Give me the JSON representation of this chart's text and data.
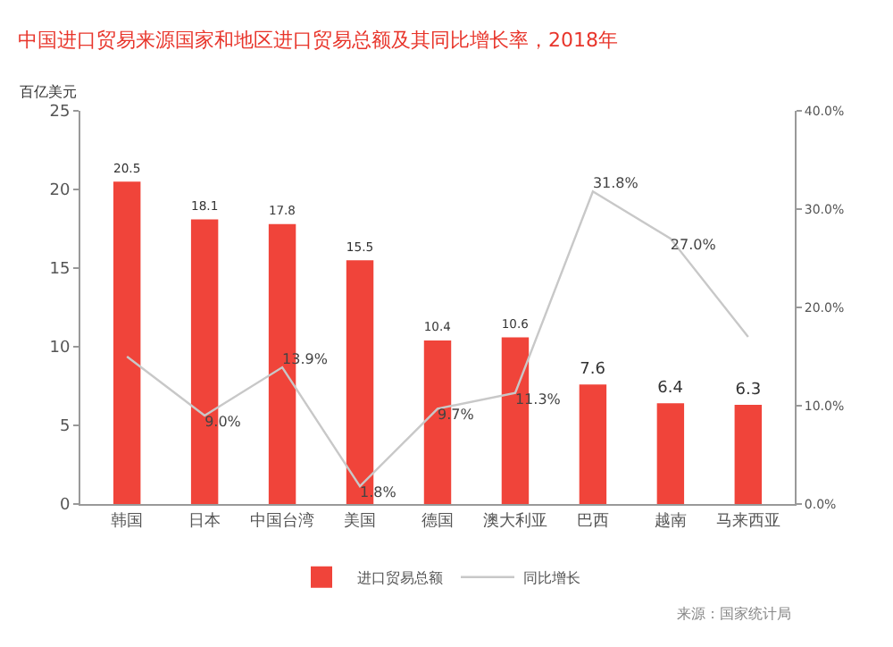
{
  "chart_data": {
    "type": "bar",
    "title": "中国进口贸易来源国家和地区进口贸易总额及其同比增长率，2018年",
    "ylabel": "百亿美元",
    "categories": [
      "韩国",
      "日本",
      "中国台湾",
      "美国",
      "德国",
      "澳大利亚",
      "巴西",
      "越南",
      "马来西亚"
    ],
    "series": [
      {
        "name": "进口贸易总额",
        "color": "#f0443a",
        "values": [
          20.5,
          18.1,
          17.8,
          15.5,
          10.4,
          10.6,
          7.6,
          6.4,
          6.3
        ]
      },
      {
        "name": "同比增长",
        "type": "line",
        "axis": "y2",
        "color": "#c8c8c8",
        "values": [
          15,
          9.0,
          13.9,
          1.8,
          9.7,
          11.3,
          31.8,
          27.0,
          17
        ],
        "value_labels": [
          null,
          "9.0%",
          "13.9%",
          "1.8%",
          "9.7%",
          "11.3%",
          "31.8%",
          "27.0%",
          null
        ]
      }
    ],
    "ylim": [
      0,
      25
    ],
    "yticks": [
      0,
      5,
      10,
      15,
      20,
      25
    ],
    "y2lim": [
      0,
      40
    ],
    "y2ticks": [
      {
        "value": 0,
        "label": "0.0%"
      },
      {
        "value": 10,
        "label": "10.0%"
      },
      {
        "value": 20,
        "label": "20.0%"
      },
      {
        "value": 30,
        "label": "30.0%"
      },
      {
        "value": 40,
        "label": "40.0%"
      }
    ],
    "grid": false,
    "legend": "bottom",
    "data_labels": true,
    "annotations": [
      "来源：国家统计局"
    ]
  }
}
